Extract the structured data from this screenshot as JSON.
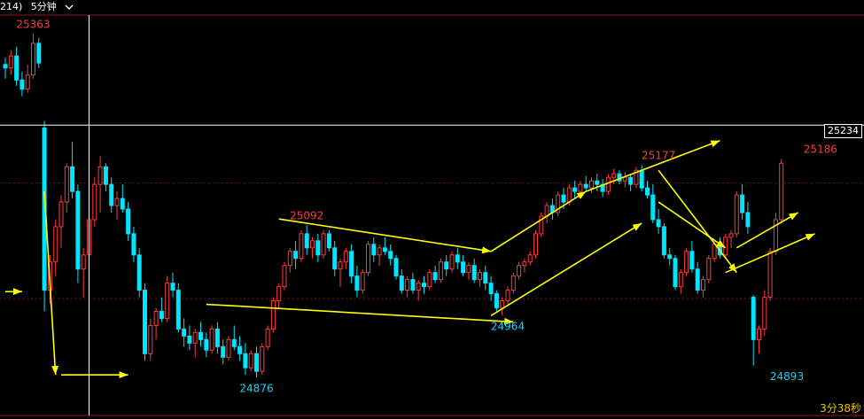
{
  "header": {
    "code_tail": "214)",
    "period_label": "5分钟",
    "dropdown_icon": "chevron-down-icon"
  },
  "crosshair": {
    "price_label": "25234",
    "price": 25234
  },
  "timer": {
    "text": "3分38秒"
  },
  "colors": {
    "up": "#ff3a3a",
    "down": "#00e5ff",
    "arrow": "#ffff00",
    "grid_dotted": "#7a1010",
    "label_high": "#ff3a3a",
    "label_low": "#19d3f0"
  },
  "chart_data": {
    "type": "candlestick",
    "ylim": [
      24840,
      25380
    ],
    "annotations": [
      {
        "text": "25363",
        "price": 25363,
        "candle": 5,
        "color": "high"
      },
      {
        "text": "25092",
        "price": 25092,
        "candle": 54,
        "color": "high"
      },
      {
        "text": "24876",
        "price": 24876,
        "candle": 45,
        "color": "low"
      },
      {
        "text": "24964",
        "price": 24964,
        "candle": 90,
        "color": "low"
      },
      {
        "text": "25177",
        "price": 25177,
        "candle": 117,
        "color": "high"
      },
      {
        "text": "25186",
        "price": 25186,
        "candle": 146,
        "color": "high"
      },
      {
        "text": "24893",
        "price": 24893,
        "candle": 140,
        "color": "low"
      }
    ],
    "reference_prices": [
      25152,
      24988
    ],
    "candles": [
      [
        25320,
        25330,
        25300,
        25315
      ],
      [
        25315,
        25340,
        25305,
        25332
      ],
      [
        25332,
        25345,
        25290,
        25298
      ],
      [
        25298,
        25310,
        25275,
        25285
      ],
      [
        25285,
        25320,
        25280,
        25305
      ],
      [
        25305,
        25363,
        25300,
        25350
      ],
      [
        25350,
        25358,
        25315,
        25322
      ],
      [
        25230,
        25240,
        24970,
        25000
      ],
      [
        25000,
        25050,
        24980,
        25040
      ],
      [
        25040,
        25100,
        25020,
        25090
      ],
      [
        25090,
        25135,
        25060,
        25125
      ],
      [
        25125,
        25180,
        25110,
        25175
      ],
      [
        25175,
        25210,
        25130,
        25140
      ],
      [
        25140,
        25150,
        25010,
        25030
      ],
      [
        25030,
        25060,
        24990,
        25050
      ],
      [
        25050,
        25110,
        25040,
        25100
      ],
      [
        25100,
        25160,
        25090,
        25150
      ],
      [
        25150,
        25190,
        25110,
        25175
      ],
      [
        25175,
        25180,
        25140,
        25150
      ],
      [
        25150,
        25160,
        25110,
        25120
      ],
      [
        25120,
        25140,
        25100,
        25130
      ],
      [
        25130,
        25150,
        25110,
        25115
      ],
      [
        25115,
        25125,
        25070,
        25080
      ],
      [
        25080,
        25090,
        25040,
        25050
      ],
      [
        25050,
        25060,
        24990,
        25000
      ],
      [
        25000,
        25010,
        24900,
        24910
      ],
      [
        24910,
        24960,
        24900,
        24950
      ],
      [
        24950,
        24975,
        24930,
        24970
      ],
      [
        24970,
        24990,
        24955,
        24960
      ],
      [
        24960,
        25020,
        24955,
        25010
      ],
      [
        25010,
        25025,
        24990,
        25000
      ],
      [
        25000,
        25010,
        24940,
        24945
      ],
      [
        24945,
        24960,
        24920,
        24935
      ],
      [
        24935,
        24950,
        24915,
        24925
      ],
      [
        24925,
        24945,
        24905,
        24940
      ],
      [
        24940,
        24955,
        24920,
        24930
      ],
      [
        24930,
        24940,
        24905,
        24915
      ],
      [
        24915,
        24950,
        24910,
        24945
      ],
      [
        24945,
        24955,
        24910,
        24920
      ],
      [
        24920,
        24930,
        24895,
        24905
      ],
      [
        24905,
        24935,
        24900,
        24930
      ],
      [
        24930,
        24950,
        24915,
        24920
      ],
      [
        24920,
        24935,
        24900,
        24910
      ],
      [
        24910,
        24925,
        24880,
        24890
      ],
      [
        24890,
        24915,
        24885,
        24910
      ],
      [
        24910,
        24920,
        24876,
        24885
      ],
      [
        24885,
        24925,
        24880,
        24920
      ],
      [
        24920,
        24950,
        24915,
        24945
      ],
      [
        24945,
        24990,
        24940,
        24985
      ],
      [
        24985,
        25010,
        24975,
        25005
      ],
      [
        25005,
        25040,
        25000,
        25035
      ],
      [
        25035,
        25060,
        25025,
        25055
      ],
      [
        25055,
        25070,
        25030,
        25045
      ],
      [
        25045,
        25085,
        25040,
        25080
      ],
      [
        25080,
        25092,
        25050,
        25060
      ],
      [
        25060,
        25075,
        25045,
        25070
      ],
      [
        25070,
        25080,
        25040,
        25050
      ],
      [
        25050,
        25085,
        25045,
        25080
      ],
      [
        25080,
        25085,
        25055,
        25060
      ],
      [
        25060,
        25070,
        25020,
        25030
      ],
      [
        25030,
        25045,
        25005,
        25040
      ],
      [
        25040,
        25060,
        25030,
        25055
      ],
      [
        25055,
        25065,
        25010,
        25020
      ],
      [
        25020,
        25035,
        24990,
        25000
      ],
      [
        25000,
        25030,
        24995,
        25025
      ],
      [
        25025,
        25070,
        25020,
        25065
      ],
      [
        25065,
        25075,
        25040,
        25050
      ],
      [
        25050,
        25065,
        25035,
        25060
      ],
      [
        25060,
        25075,
        25050,
        25055
      ],
      [
        25055,
        25065,
        25035,
        25045
      ],
      [
        25045,
        25050,
        25015,
        25020
      ],
      [
        25020,
        25030,
        24995,
        25000
      ],
      [
        25000,
        25020,
        24990,
        25015
      ],
      [
        25015,
        25025,
        24995,
        25000
      ],
      [
        25000,
        25015,
        24985,
        25010
      ],
      [
        25010,
        25020,
        24995,
        25005
      ],
      [
        25005,
        25030,
        25000,
        25025
      ],
      [
        25025,
        25035,
        25010,
        25015
      ],
      [
        25015,
        25045,
        25010,
        25040
      ],
      [
        25040,
        25050,
        25020,
        25030
      ],
      [
        25030,
        25055,
        25025,
        25050
      ],
      [
        25050,
        25060,
        25030,
        25040
      ],
      [
        25040,
        25050,
        25020,
        25025
      ],
      [
        25025,
        25040,
        25015,
        25035
      ],
      [
        25035,
        25045,
        25010,
        25015
      ],
      [
        25015,
        25030,
        25005,
        25025
      ],
      [
        25025,
        25035,
        25000,
        25010
      ],
      [
        25010,
        25020,
        24985,
        24995
      ],
      [
        24995,
        25000,
        24970,
        24975
      ],
      [
        24975,
        24990,
        24964,
        24985
      ],
      [
        24985,
        25005,
        24980,
        25000
      ],
      [
        25000,
        25025,
        24995,
        25020
      ],
      [
        25020,
        25040,
        25015,
        25035
      ],
      [
        25035,
        25045,
        25025,
        25040
      ],
      [
        25040,
        25055,
        25035,
        25050
      ],
      [
        25050,
        25085,
        25045,
        25080
      ],
      [
        25080,
        25110,
        25075,
        25105
      ],
      [
        25105,
        25125,
        25095,
        25120
      ],
      [
        25120,
        25130,
        25100,
        25110
      ],
      [
        25110,
        25140,
        25105,
        25135
      ],
      [
        25135,
        25145,
        25115,
        25125
      ],
      [
        25125,
        25150,
        25120,
        25145
      ],
      [
        25145,
        25155,
        25130,
        25140
      ],
      [
        25140,
        25155,
        25135,
        25150
      ],
      [
        25150,
        25162,
        25140,
        25145
      ],
      [
        25145,
        25160,
        25138,
        25155
      ],
      [
        25155,
        25165,
        25140,
        25150
      ],
      [
        25150,
        25158,
        25132,
        25140
      ],
      [
        25140,
        25165,
        25135,
        25160
      ],
      [
        25160,
        25172,
        25150,
        25165
      ],
      [
        25165,
        25170,
        25150,
        25155
      ],
      [
        25155,
        25168,
        25145,
        25160
      ],
      [
        25160,
        25165,
        25140,
        25150
      ],
      [
        25150,
        25175,
        25145,
        25170
      ],
      [
        25170,
        25177,
        25140,
        25145
      ],
      [
        25145,
        25155,
        25130,
        25135
      ],
      [
        25135,
        25150,
        25095,
        25100
      ],
      [
        25100,
        25115,
        25080,
        25090
      ],
      [
        25090,
        25095,
        25045,
        25050
      ],
      [
        25050,
        25060,
        25035,
        25045
      ],
      [
        25045,
        25050,
        25000,
        25005
      ],
      [
        25005,
        25030,
        24995,
        25025
      ],
      [
        25025,
        25060,
        25020,
        25055
      ],
      [
        25055,
        25070,
        25025,
        25030
      ],
      [
        25030,
        25040,
        24995,
        25000
      ],
      [
        25000,
        25020,
        24990,
        25015
      ],
      [
        25015,
        25050,
        25010,
        25045
      ],
      [
        25045,
        25070,
        25040,
        25065
      ],
      [
        25065,
        25075,
        25045,
        25050
      ],
      [
        25050,
        25080,
        25045,
        25075
      ],
      [
        25075,
        25085,
        25060,
        25080
      ],
      [
        25080,
        25140,
        25075,
        25135
      ],
      [
        25135,
        25150,
        25100,
        25110
      ],
      [
        25110,
        25125,
        25080,
        25090
      ],
      [
        24990,
        24993,
        24893,
        24930
      ],
      [
        24930,
        24950,
        24910,
        24945
      ],
      [
        24945,
        25000,
        24935,
        24990
      ],
      [
        24990,
        25060,
        24985,
        25055
      ],
      [
        25055,
        25110,
        25050,
        25100
      ],
      [
        25100,
        25186,
        25095,
        25180
      ]
    ],
    "arrows": [
      {
        "from": [
          0,
          24998
        ],
        "to": [
          3,
          24998
        ]
      },
      {
        "from": [
          7,
          25140
        ],
        "to": [
          9,
          24880
        ]
      },
      {
        "from": [
          10,
          24880
        ],
        "to": [
          22,
          24880
        ]
      },
      {
        "from": [
          49,
          25101
        ],
        "to": [
          87,
          25055
        ]
      },
      {
        "from": [
          36,
          24980
        ],
        "to": [
          91,
          24955
        ]
      },
      {
        "from": [
          87,
          25055
        ],
        "to": [
          104,
          25140
        ]
      },
      {
        "from": [
          104,
          25140
        ],
        "to": [
          128,
          25212
        ]
      },
      {
        "from": [
          87,
          24964
        ],
        "to": [
          114,
          25095
        ]
      },
      {
        "from": [
          117,
          25170
        ],
        "to": [
          131,
          25025
        ]
      },
      {
        "from": [
          117,
          25125
        ],
        "to": [
          129,
          25060
        ]
      },
      {
        "from": [
          131,
          25060
        ],
        "to": [
          142,
          25110
        ]
      },
      {
        "from": [
          129,
          25025
        ],
        "to": [
          145,
          25080
        ]
      }
    ]
  }
}
